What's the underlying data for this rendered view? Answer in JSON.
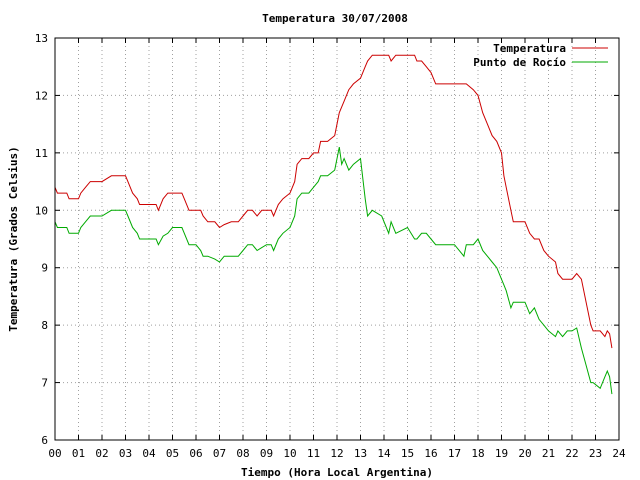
{
  "chart_data": {
    "type": "line",
    "title": "Temperatura 30/07/2008",
    "xlabel": "Tiempo (Hora Local Argentina)",
    "ylabel": "Temperatura (Grados Celsius)",
    "xlim": [
      0,
      24
    ],
    "ylim": [
      6,
      13
    ],
    "xticks": [
      "00",
      "01",
      "02",
      "03",
      "04",
      "05",
      "06",
      "07",
      "08",
      "09",
      "10",
      "11",
      "12",
      "13",
      "14",
      "15",
      "16",
      "17",
      "18",
      "19",
      "20",
      "21",
      "22",
      "23",
      "24"
    ],
    "yticks": [
      6,
      7,
      8,
      9,
      10,
      11,
      12,
      13
    ],
    "grid": true,
    "legend_position": "top-right",
    "series": [
      {
        "name": "Temperatura",
        "color": "#cc0000",
        "points": [
          [
            0.0,
            10.4
          ],
          [
            0.1,
            10.3
          ],
          [
            0.5,
            10.3
          ],
          [
            0.6,
            10.2
          ],
          [
            1.0,
            10.2
          ],
          [
            1.1,
            10.3
          ],
          [
            1.3,
            10.4
          ],
          [
            1.5,
            10.5
          ],
          [
            2.0,
            10.5
          ],
          [
            2.4,
            10.6
          ],
          [
            3.0,
            10.6
          ],
          [
            3.1,
            10.5
          ],
          [
            3.3,
            10.3
          ],
          [
            3.5,
            10.2
          ],
          [
            3.6,
            10.1
          ],
          [
            4.0,
            10.1
          ],
          [
            4.3,
            10.1
          ],
          [
            4.4,
            10.0
          ],
          [
            4.6,
            10.2
          ],
          [
            4.8,
            10.3
          ],
          [
            5.0,
            10.3
          ],
          [
            5.4,
            10.3
          ],
          [
            5.5,
            10.2
          ],
          [
            5.7,
            10.0
          ],
          [
            6.0,
            10.0
          ],
          [
            6.2,
            10.0
          ],
          [
            6.3,
            9.9
          ],
          [
            6.5,
            9.8
          ],
          [
            6.8,
            9.8
          ],
          [
            7.0,
            9.7
          ],
          [
            7.2,
            9.75
          ],
          [
            7.5,
            9.8
          ],
          [
            7.8,
            9.8
          ],
          [
            8.0,
            9.9
          ],
          [
            8.2,
            10.0
          ],
          [
            8.4,
            10.0
          ],
          [
            8.6,
            9.9
          ],
          [
            8.8,
            10.0
          ],
          [
            9.0,
            10.0
          ],
          [
            9.2,
            10.0
          ],
          [
            9.3,
            9.9
          ],
          [
            9.5,
            10.1
          ],
          [
            9.7,
            10.2
          ],
          [
            10.0,
            10.3
          ],
          [
            10.2,
            10.5
          ],
          [
            10.3,
            10.8
          ],
          [
            10.5,
            10.9
          ],
          [
            10.8,
            10.9
          ],
          [
            11.0,
            11.0
          ],
          [
            11.2,
            11.0
          ],
          [
            11.3,
            11.2
          ],
          [
            11.6,
            11.2
          ],
          [
            11.9,
            11.3
          ],
          [
            12.0,
            11.5
          ],
          [
            12.1,
            11.7
          ],
          [
            12.2,
            11.8
          ],
          [
            12.3,
            11.9
          ],
          [
            12.5,
            12.1
          ],
          [
            12.7,
            12.2
          ],
          [
            13.0,
            12.3
          ],
          [
            13.2,
            12.5
          ],
          [
            13.3,
            12.6
          ],
          [
            13.5,
            12.7
          ],
          [
            13.9,
            12.7
          ],
          [
            14.2,
            12.7
          ],
          [
            14.3,
            12.6
          ],
          [
            14.5,
            12.7
          ],
          [
            15.0,
            12.7
          ],
          [
            15.3,
            12.7
          ],
          [
            15.4,
            12.6
          ],
          [
            15.6,
            12.6
          ],
          [
            15.8,
            12.5
          ],
          [
            16.0,
            12.4
          ],
          [
            16.2,
            12.2
          ],
          [
            16.5,
            12.2
          ],
          [
            17.0,
            12.2
          ],
          [
            17.4,
            12.2
          ],
          [
            17.5,
            12.2
          ],
          [
            17.8,
            12.1
          ],
          [
            18.0,
            12.0
          ],
          [
            18.2,
            11.7
          ],
          [
            18.4,
            11.5
          ],
          [
            18.6,
            11.3
          ],
          [
            18.8,
            11.2
          ],
          [
            19.0,
            11.0
          ],
          [
            19.1,
            10.6
          ],
          [
            19.2,
            10.4
          ],
          [
            19.4,
            10.0
          ],
          [
            19.5,
            9.8
          ],
          [
            19.8,
            9.8
          ],
          [
            20.0,
            9.8
          ],
          [
            20.2,
            9.6
          ],
          [
            20.4,
            9.5
          ],
          [
            20.6,
            9.5
          ],
          [
            20.8,
            9.3
          ],
          [
            21.0,
            9.2
          ],
          [
            21.3,
            9.1
          ],
          [
            21.4,
            8.9
          ],
          [
            21.6,
            8.8
          ],
          [
            21.8,
            8.8
          ],
          [
            22.0,
            8.8
          ],
          [
            22.2,
            8.9
          ],
          [
            22.4,
            8.8
          ],
          [
            22.6,
            8.4
          ],
          [
            22.8,
            8.0
          ],
          [
            22.9,
            7.9
          ],
          [
            23.2,
            7.9
          ],
          [
            23.4,
            7.8
          ],
          [
            23.5,
            7.9
          ],
          [
            23.6,
            7.85
          ],
          [
            23.7,
            7.6
          ]
        ]
      },
      {
        "name": "Punto de Rocío",
        "color": "#00aa00",
        "points": [
          [
            0.0,
            9.8
          ],
          [
            0.1,
            9.7
          ],
          [
            0.5,
            9.7
          ],
          [
            0.6,
            9.6
          ],
          [
            1.0,
            9.6
          ],
          [
            1.1,
            9.7
          ],
          [
            1.3,
            9.8
          ],
          [
            1.5,
            9.9
          ],
          [
            2.0,
            9.9
          ],
          [
            2.4,
            10.0
          ],
          [
            3.0,
            10.0
          ],
          [
            3.1,
            9.9
          ],
          [
            3.3,
            9.7
          ],
          [
            3.5,
            9.6
          ],
          [
            3.6,
            9.5
          ],
          [
            4.0,
            9.5
          ],
          [
            4.3,
            9.5
          ],
          [
            4.4,
            9.4
          ],
          [
            4.6,
            9.55
          ],
          [
            4.8,
            9.6
          ],
          [
            5.0,
            9.7
          ],
          [
            5.4,
            9.7
          ],
          [
            5.5,
            9.6
          ],
          [
            5.7,
            9.4
          ],
          [
            6.0,
            9.4
          ],
          [
            6.2,
            9.3
          ],
          [
            6.3,
            9.2
          ],
          [
            6.5,
            9.2
          ],
          [
            6.8,
            9.15
          ],
          [
            7.0,
            9.1
          ],
          [
            7.2,
            9.2
          ],
          [
            7.5,
            9.2
          ],
          [
            7.8,
            9.2
          ],
          [
            8.0,
            9.3
          ],
          [
            8.2,
            9.4
          ],
          [
            8.4,
            9.4
          ],
          [
            8.6,
            9.3
          ],
          [
            8.8,
            9.35
          ],
          [
            9.0,
            9.4
          ],
          [
            9.2,
            9.4
          ],
          [
            9.3,
            9.3
          ],
          [
            9.5,
            9.5
          ],
          [
            9.7,
            9.6
          ],
          [
            10.0,
            9.7
          ],
          [
            10.2,
            9.9
          ],
          [
            10.3,
            10.2
          ],
          [
            10.5,
            10.3
          ],
          [
            10.8,
            10.3
          ],
          [
            11.0,
            10.4
          ],
          [
            11.2,
            10.5
          ],
          [
            11.3,
            10.6
          ],
          [
            11.6,
            10.6
          ],
          [
            11.9,
            10.7
          ],
          [
            12.0,
            10.9
          ],
          [
            12.1,
            11.1
          ],
          [
            12.2,
            10.8
          ],
          [
            12.3,
            10.9
          ],
          [
            12.5,
            10.7
          ],
          [
            12.7,
            10.8
          ],
          [
            13.0,
            10.9
          ],
          [
            13.2,
            10.2
          ],
          [
            13.3,
            9.9
          ],
          [
            13.5,
            10.0
          ],
          [
            13.9,
            9.9
          ],
          [
            14.2,
            9.6
          ],
          [
            14.3,
            9.8
          ],
          [
            14.5,
            9.6
          ],
          [
            15.0,
            9.7
          ],
          [
            15.3,
            9.5
          ],
          [
            15.4,
            9.5
          ],
          [
            15.6,
            9.6
          ],
          [
            15.8,
            9.6
          ],
          [
            16.0,
            9.5
          ],
          [
            16.2,
            9.4
          ],
          [
            16.5,
            9.4
          ],
          [
            17.0,
            9.4
          ],
          [
            17.4,
            9.2
          ],
          [
            17.5,
            9.4
          ],
          [
            17.8,
            9.4
          ],
          [
            18.0,
            9.5
          ],
          [
            18.2,
            9.3
          ],
          [
            18.4,
            9.2
          ],
          [
            18.6,
            9.1
          ],
          [
            18.8,
            9.0
          ],
          [
            19.0,
            8.8
          ],
          [
            19.1,
            8.7
          ],
          [
            19.2,
            8.6
          ],
          [
            19.4,
            8.3
          ],
          [
            19.5,
            8.4
          ],
          [
            19.8,
            8.4
          ],
          [
            20.0,
            8.4
          ],
          [
            20.2,
            8.2
          ],
          [
            20.4,
            8.3
          ],
          [
            20.6,
            8.1
          ],
          [
            20.8,
            8.0
          ],
          [
            21.0,
            7.9
          ],
          [
            21.3,
            7.8
          ],
          [
            21.4,
            7.9
          ],
          [
            21.6,
            7.8
          ],
          [
            21.8,
            7.9
          ],
          [
            22.0,
            7.9
          ],
          [
            22.2,
            7.95
          ],
          [
            22.4,
            7.6
          ],
          [
            22.6,
            7.3
          ],
          [
            22.8,
            7.0
          ],
          [
            22.9,
            7.0
          ],
          [
            23.2,
            6.9
          ],
          [
            23.4,
            7.1
          ],
          [
            23.5,
            7.2
          ],
          [
            23.6,
            7.1
          ],
          [
            23.7,
            6.8
          ]
        ]
      }
    ]
  }
}
